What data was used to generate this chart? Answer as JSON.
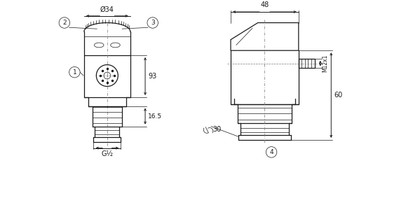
{
  "bg_color": "#ffffff",
  "line_color": "#1a1a1a",
  "fig_width": 5.99,
  "fig_height": 3.03,
  "labels": {
    "1": "1",
    "2": "2",
    "3": "3",
    "4": "4",
    "d34": "Ø34",
    "g12": "G½",
    "16_5": "16.5",
    "93": "93",
    "48": "48",
    "60": "60",
    "m12x1": "M12x1",
    "w30": "30"
  },
  "lw": 0.9,
  "lw_thin": 0.5,
  "lw_dim": 0.7
}
